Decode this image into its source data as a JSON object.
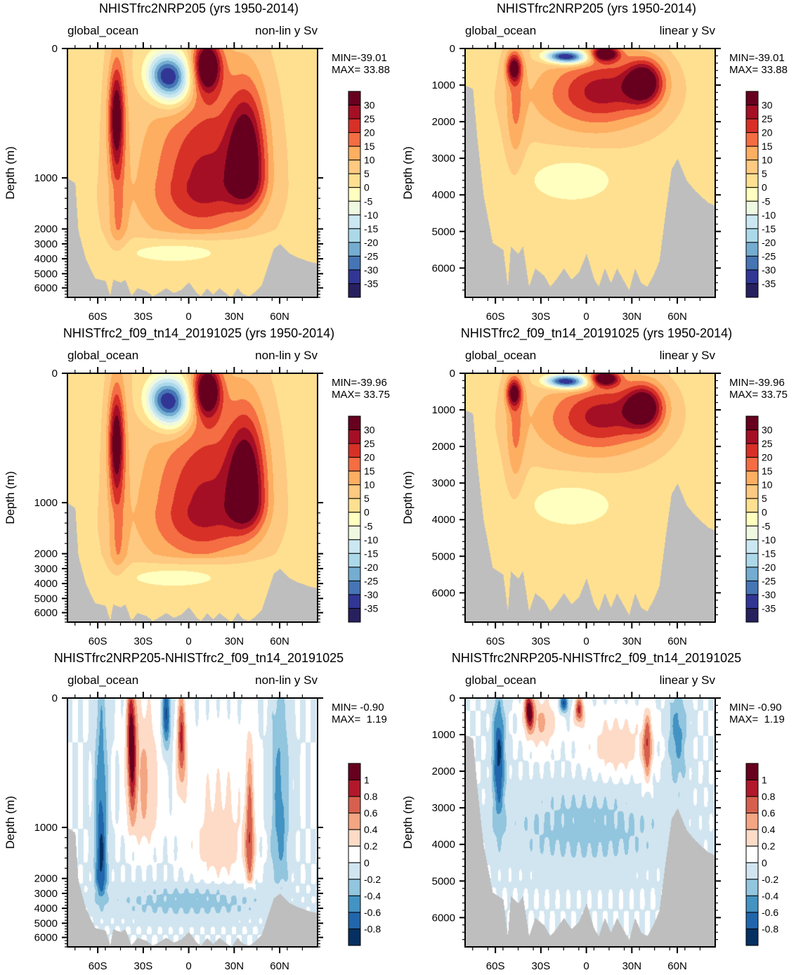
{
  "chart_data": [
    {
      "type": "heatmap",
      "title": "NHISTfrc2NRP205 (yrs 1950-2014)",
      "left_label": "global_ocean",
      "right_label": "non-lin y Sv",
      "ylabel": "Depth (m)",
      "y_scale": "non-linear",
      "y_ticks": [
        0,
        1000,
        2000,
        3000,
        4000,
        5000,
        6000
      ],
      "x_ticks": [
        "60S",
        "30S",
        "0",
        "30N",
        "60N"
      ],
      "min_label": "MIN=-39.01",
      "max_label": "MAX= 33.88",
      "colorbar": {
        "palette": "diverging_red_blue",
        "levels": [
          30,
          25,
          20,
          15,
          10,
          5,
          0,
          -5,
          -10,
          -15,
          -20,
          -25,
          -30,
          -35
        ],
        "colors": [
          "#67001f",
          "#a50f26",
          "#d73027",
          "#f46d43",
          "#fdae61",
          "#fec980",
          "#fee090",
          "#ffffbf",
          "#eff8e0",
          "#cbe8f2",
          "#abd9e9",
          "#74add1",
          "#4575b4",
          "#313695",
          "#27205e"
        ]
      },
      "features": [
        {
          "kind": "cell",
          "lat": -45,
          "depth": [
            0,
            1100
          ],
          "value": 22
        },
        {
          "kind": "cell",
          "lat": -10,
          "depth": [
            50,
            400
          ],
          "value": -35
        },
        {
          "kind": "cell",
          "lat": 18,
          "depth": [
            50,
            500
          ],
          "value": 32
        },
        {
          "kind": "cell",
          "lat": 38,
          "depth": [
            700,
            2000
          ],
          "value": 28
        },
        {
          "kind": "cell",
          "lat": -20,
          "depth": [
            3200,
            4200
          ],
          "value": -5
        }
      ]
    },
    {
      "type": "heatmap",
      "title": "NHISTfrc2NRP205 (yrs 1950-2014)",
      "left_label": "global_ocean",
      "right_label": "linear y Sv",
      "ylabel": "Depth (m)",
      "y_scale": "linear",
      "y_ticks": [
        0,
        1000,
        2000,
        3000,
        4000,
        5000,
        6000
      ],
      "x_ticks": [
        "60S",
        "30S",
        "0",
        "30N",
        "60N"
      ],
      "min_label": "MIN=-39.01",
      "max_label": "MAX= 33.88",
      "colorbar": {
        "palette": "diverging_red_blue",
        "levels": [
          30,
          25,
          20,
          15,
          10,
          5,
          0,
          -5,
          -10,
          -15,
          -20,
          -25,
          -30,
          -35
        ],
        "colors": [
          "#67001f",
          "#a50f26",
          "#d73027",
          "#f46d43",
          "#fdae61",
          "#fec980",
          "#fee090",
          "#ffffbf",
          "#eff8e0",
          "#cbe8f2",
          "#abd9e9",
          "#74add1",
          "#4575b4",
          "#313695",
          "#27205e"
        ]
      },
      "features": []
    },
    {
      "type": "heatmap",
      "title": "NHISTfrc2_f09_tn14_20191025 (yrs 1950-2014)",
      "left_label": "global_ocean",
      "right_label": "non-lin y Sv",
      "ylabel": "Depth (m)",
      "y_scale": "non-linear",
      "y_ticks": [
        0,
        1000,
        2000,
        3000,
        4000,
        5000,
        6000
      ],
      "x_ticks": [
        "60S",
        "30S",
        "0",
        "30N",
        "60N"
      ],
      "min_label": "MIN=-39.96",
      "max_label": "MAX= 33.75",
      "colorbar": {
        "palette": "diverging_red_blue",
        "levels": [
          30,
          25,
          20,
          15,
          10,
          5,
          0,
          -5,
          -10,
          -15,
          -20,
          -25,
          -30,
          -35
        ],
        "colors": [
          "#67001f",
          "#a50f26",
          "#d73027",
          "#f46d43",
          "#fdae61",
          "#fec980",
          "#fee090",
          "#ffffbf",
          "#eff8e0",
          "#cbe8f2",
          "#abd9e9",
          "#74add1",
          "#4575b4",
          "#313695",
          "#27205e"
        ]
      },
      "features": []
    },
    {
      "type": "heatmap",
      "title": "NHISTfrc2_f09_tn14_20191025 (yrs 1950-2014)",
      "left_label": "global_ocean",
      "right_label": "linear y Sv",
      "ylabel": "Depth (m)",
      "y_scale": "linear",
      "y_ticks": [
        0,
        1000,
        2000,
        3000,
        4000,
        5000,
        6000
      ],
      "x_ticks": [
        "60S",
        "30S",
        "0",
        "30N",
        "60N"
      ],
      "min_label": "MIN=-39.96",
      "max_label": "MAX= 33.75",
      "colorbar": {
        "palette": "diverging_red_blue",
        "levels": [
          30,
          25,
          20,
          15,
          10,
          5,
          0,
          -5,
          -10,
          -15,
          -20,
          -25,
          -30,
          -35
        ],
        "colors": [
          "#67001f",
          "#a50f26",
          "#d73027",
          "#f46d43",
          "#fdae61",
          "#fec980",
          "#fee090",
          "#ffffbf",
          "#eff8e0",
          "#cbe8f2",
          "#abd9e9",
          "#74add1",
          "#4575b4",
          "#313695",
          "#27205e"
        ]
      },
      "features": []
    },
    {
      "type": "heatmap",
      "title": "NHISTfrc2NRP205-NHISTfrc2_f09_tn14_20191025",
      "left_label": "global_ocean",
      "right_label": "non-lin y Sv",
      "ylabel": "Depth (m)",
      "y_scale": "non-linear",
      "y_ticks": [
        0,
        1000,
        2000,
        3000,
        4000,
        5000,
        6000
      ],
      "x_ticks": [
        "60S",
        "30S",
        "0",
        "30N",
        "60N"
      ],
      "min_label": "MIN= -0.90",
      "max_label": "MAX=  1.19",
      "colorbar": {
        "palette": "diverging_red_blue_diff",
        "levels": [
          1,
          0.8,
          0.6,
          0.4,
          0.2,
          0,
          -0.2,
          -0.4,
          -0.6,
          -0.8
        ],
        "colors": [
          "#67001f",
          "#b2182b",
          "#d6604d",
          "#f4a582",
          "#fddbc7",
          "#ffffff",
          "#d1e5f0",
          "#92c5de",
          "#4393c3",
          "#2166ac",
          "#053061"
        ]
      },
      "features": []
    },
    {
      "type": "heatmap",
      "title": "NHISTfrc2NRP205-NHISTfrc2_f09_tn14_20191025",
      "left_label": "global_ocean",
      "right_label": "linear y Sv",
      "ylabel": "Depth (m)",
      "y_scale": "linear",
      "y_ticks": [
        0,
        1000,
        2000,
        3000,
        4000,
        5000,
        6000
      ],
      "x_ticks": [
        "60S",
        "30S",
        "0",
        "30N",
        "60N"
      ],
      "min_label": "MIN= -0.90",
      "max_label": "MAX=  1.19",
      "colorbar": {
        "palette": "diverging_red_blue_diff",
        "levels": [
          1,
          0.8,
          0.6,
          0.4,
          0.2,
          0,
          -0.2,
          -0.4,
          -0.6,
          -0.8
        ],
        "colors": [
          "#67001f",
          "#b2182b",
          "#d6604d",
          "#f4a582",
          "#fddbc7",
          "#ffffff",
          "#d1e5f0",
          "#92c5de",
          "#4393c3",
          "#2166ac",
          "#053061"
        ]
      },
      "features": []
    }
  ],
  "land_color": "#bebebe"
}
